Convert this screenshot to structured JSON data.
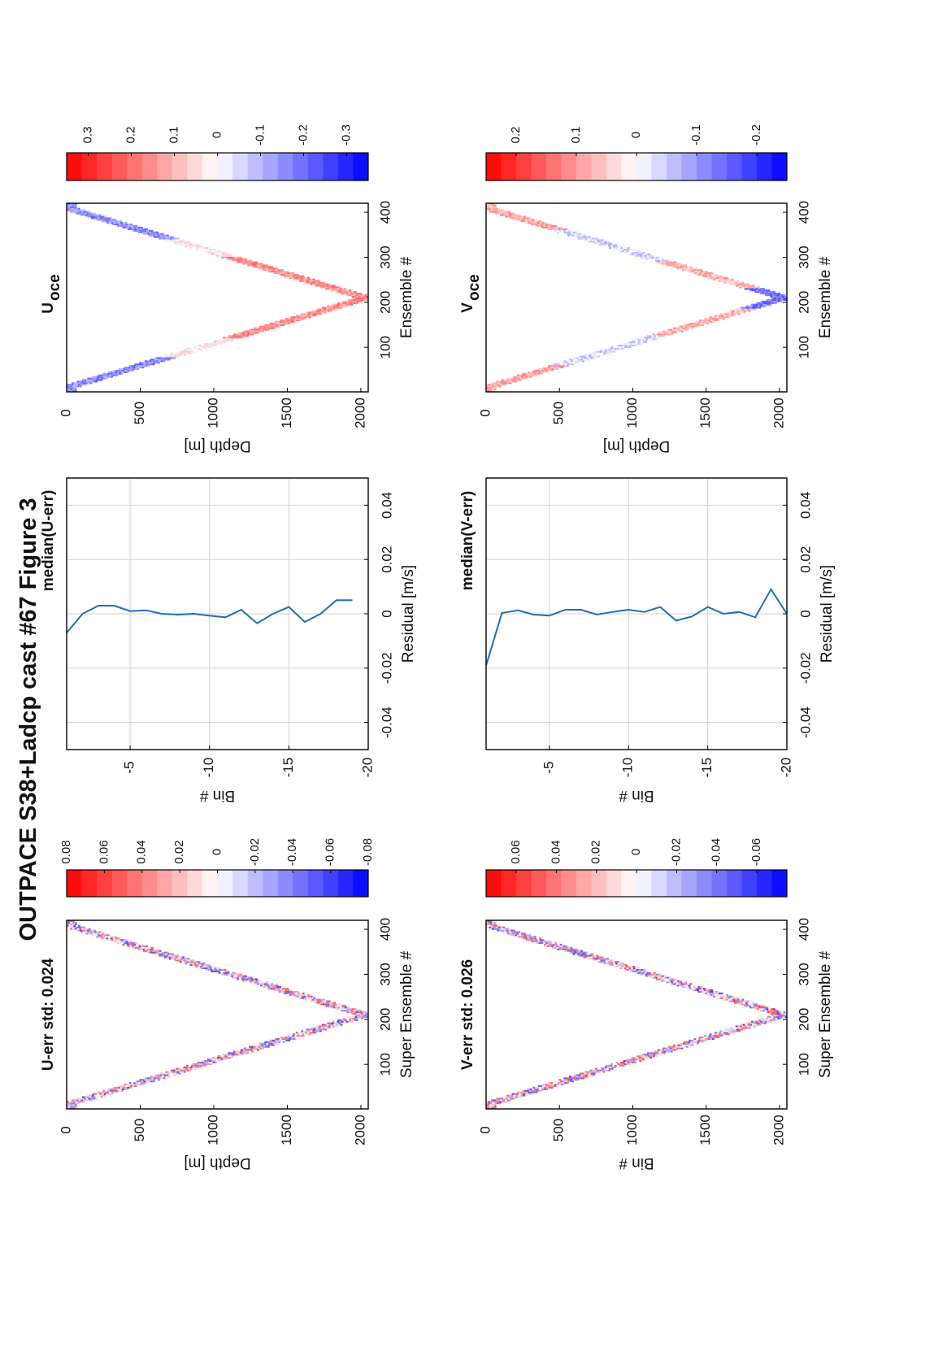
{
  "figure": {
    "title": "OUTPACE S38+Ladcp cast #67  Figure 3",
    "orientation": "rotated 90° counter-clockwise"
  },
  "chart_data": [
    {
      "id": "u_err",
      "type": "heatmap",
      "title": "U-err std: 0.024",
      "xlabel": "Super Ensemble #",
      "ylabel": "Depth [m]",
      "xticks": [
        "100",
        "200",
        "300",
        "400"
      ],
      "yticks": [
        "0",
        "500",
        "1000",
        "1500",
        "2000"
      ],
      "xlim": [
        1,
        420
      ],
      "ylim": [
        0,
        2050
      ],
      "shape": "V-shaped cast track, downcast to ~2030 m at ensemble ~210",
      "colorbar": {
        "ticks": [
          "0.08",
          "0.06",
          "0.04",
          "0.02",
          "0",
          "-0.02",
          "-0.04",
          "-0.06",
          "-0.08"
        ],
        "range": [
          -0.08,
          0.08
        ],
        "scale": "red (positive) – white – blue (negative)"
      }
    },
    {
      "id": "median_u",
      "type": "line",
      "title": "median(U-err)",
      "xlabel": "Residual [m/s]",
      "ylabel": "Bin #",
      "xticks": [
        "-0.04",
        "-0.02",
        "0",
        "0.02",
        "0.04"
      ],
      "yticks": [
        "-5",
        "-10",
        "-15",
        "-20"
      ],
      "xlim": [
        -0.05,
        0.05
      ],
      "ylim": [
        -20,
        -1
      ],
      "grid": true,
      "series": [
        {
          "x": [
            -0.007,
            0.0,
            0.003,
            0.003,
            0.001,
            0.0013,
            0.0,
            -0.0003,
            0.0,
            -0.0007,
            -0.0013,
            0.0015,
            -0.0035,
            0.0,
            0.0025,
            -0.003,
            0.0,
            0.005,
            0.005
          ],
          "y": [
            -1,
            -2,
            -3,
            -4,
            -5,
            -6,
            -7,
            -8,
            -9,
            -10,
            -11,
            -12,
            -13,
            -14,
            -15,
            -16,
            -17,
            -18,
            -19
          ]
        }
      ]
    },
    {
      "id": "u_oce",
      "type": "heatmap",
      "title": "U",
      "title_sub": "oce",
      "xlabel": "Ensemble #",
      "ylabel": "Depth [m]",
      "xticks": [
        "100",
        "200",
        "300",
        "400"
      ],
      "yticks": [
        "0",
        "500",
        "1000",
        "1500",
        "2000"
      ],
      "xlim": [
        1,
        420
      ],
      "ylim": [
        0,
        2050
      ],
      "shape": "V-shaped cast track, downcast to ~2030 m at ensemble ~210",
      "colorbar": {
        "ticks": [
          "0.3",
          "0.2",
          "0.1",
          "0",
          "-0.1",
          "-0.2",
          "-0.3"
        ],
        "range": [
          -0.35,
          0.35
        ],
        "scale": "red (positive) – white – blue (negative)"
      }
    },
    {
      "id": "v_err",
      "type": "heatmap",
      "title": "V-err std: 0.026",
      "xlabel": "Super Ensemble #",
      "ylabel": "Bin #",
      "xticks": [
        "100",
        "200",
        "300",
        "400"
      ],
      "yticks": [
        "0",
        "500",
        "1000",
        "1500",
        "2000"
      ],
      "xlim": [
        1,
        420
      ],
      "ylim": [
        0,
        2050
      ],
      "shape": "V-shaped cast track, downcast to ~2030 m at ensemble ~210",
      "colorbar": {
        "ticks": [
          "0.06",
          "0.04",
          "0.02",
          "0",
          "-0.02",
          "-0.04",
          "-0.06"
        ],
        "range": [
          -0.075,
          0.075
        ],
        "scale": "red (positive) – white – blue (negative)"
      }
    },
    {
      "id": "median_v",
      "type": "line",
      "title": "median(V-err)",
      "xlabel": "Residual [m/s]",
      "ylabel": "Bin #",
      "xticks": [
        "-0.04",
        "-0.02",
        "0",
        "0.02",
        "0.04"
      ],
      "yticks": [
        "-5",
        "-10",
        "-15",
        "-20"
      ],
      "xlim": [
        -0.05,
        0.05
      ],
      "ylim": [
        -20,
        -1
      ],
      "grid": true,
      "series": [
        {
          "x": [
            -0.019,
            0.0003,
            0.0013,
            -0.0003,
            -0.0007,
            0.0015,
            0.0015,
            -0.0003,
            0.0007,
            0.0015,
            0.0007,
            0.0025,
            -0.0025,
            -0.001,
            0.0025,
            0.0,
            0.0007,
            -0.0013,
            0.009,
            0.0
          ],
          "y": [
            -1,
            -2,
            -3,
            -4,
            -5,
            -6,
            -7,
            -8,
            -9,
            -10,
            -11,
            -12,
            -13,
            -14,
            -15,
            -16,
            -17,
            -18,
            -19,
            -20
          ]
        }
      ]
    },
    {
      "id": "v_oce",
      "type": "heatmap",
      "title": "V",
      "title_sub": "oce",
      "xlabel": "Ensemble #",
      "ylabel": "Depth [m]",
      "xticks": [
        "100",
        "200",
        "300",
        "400"
      ],
      "yticks": [
        "0",
        "500",
        "1000",
        "1500",
        "2000"
      ],
      "xlim": [
        1,
        420
      ],
      "ylim": [
        0,
        2050
      ],
      "shape": "V-shaped cast track, downcast to ~2030 m at ensemble ~210",
      "colorbar": {
        "ticks": [
          "0.2",
          "0.1",
          "0",
          "-0.1",
          "-0.2"
        ],
        "range": [
          -0.25,
          0.25
        ],
        "scale": "red (positive) – white – blue (negative)"
      }
    }
  ]
}
